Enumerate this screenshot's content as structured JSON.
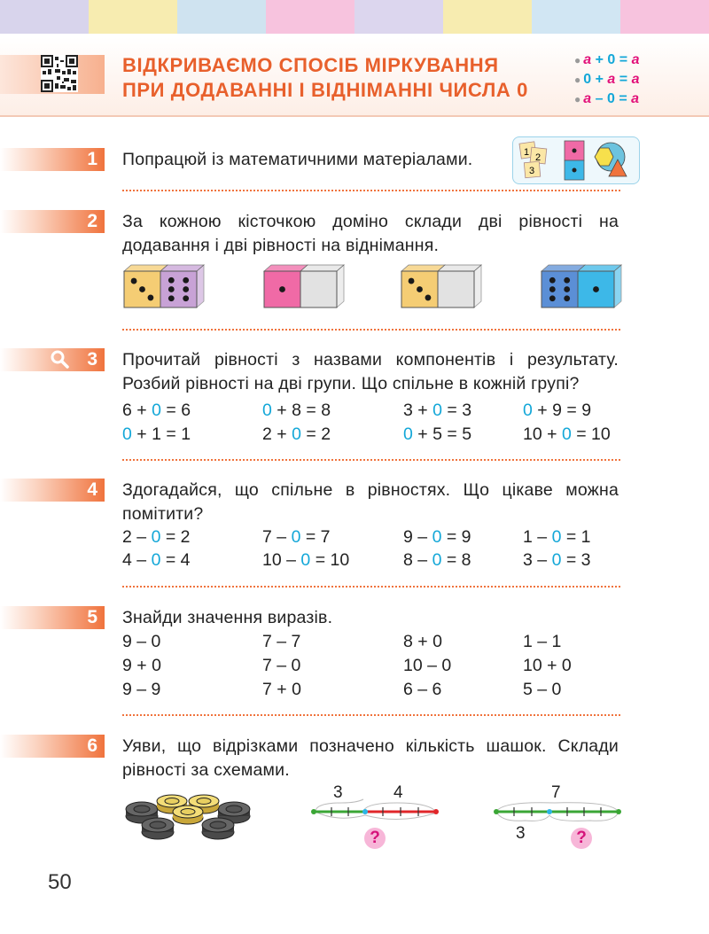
{
  "colors": {
    "accent": "#e8602c",
    "zero": "#13a7d8",
    "variable": "#e2127a",
    "stripes": [
      "#d8d4ec",
      "#f7ecb0",
      "#cfe3f0",
      "#f7c3de",
      "#dcd6ee",
      "#f7ecb0",
      "#d1e6f3",
      "#f7c3de"
    ]
  },
  "header": {
    "title_line1": "ВІДКРИВАЄМО СПОСІБ МІРКУВАННЯ",
    "title_line2": "ПРИ ДОДАВАННІ І ВІДНІМАННІ ЧИСЛА 0",
    "qr_icon": "qr-code-icon",
    "rules": [
      {
        "a": "a",
        "op": "+",
        "b": "0",
        "eq": "=",
        "r": "a"
      },
      {
        "a": "0",
        "op": "+",
        "b": "a",
        "eq": "=",
        "r": "a"
      },
      {
        "a": "a",
        "op": "–",
        "b": "0",
        "eq": "=",
        "r": "a"
      }
    ]
  },
  "tasks": {
    "t1": {
      "num": "1",
      "text": "Попрацюй із математичними матеріалами.",
      "materials": {
        "cards": [
          "1",
          "2",
          "3"
        ]
      }
    },
    "t2": {
      "num": "2",
      "text": "За кожною кісточкою доміно склади дві рівності на додавання і дві рівності на віднімання.",
      "dominoes": [
        {
          "left": 3,
          "right": 6,
          "left_color": "#f5cd74",
          "right_color": "#c8a2d6"
        },
        {
          "left": 1,
          "right": 0,
          "left_color": "#f06aa6",
          "right_color": "#e2e2e2"
        },
        {
          "left": 3,
          "right": 0,
          "left_color": "#f5cd74",
          "right_color": "#e2e2e2"
        },
        {
          "left": 6,
          "right": 1,
          "left_color": "#5b8fd6",
          "right_color": "#3db8e8"
        }
      ]
    },
    "t3": {
      "num": "3",
      "icon": "magnifier-icon",
      "text": "Прочитай рівності з назвами компонентів і результату. Розбий рівності на дві групи. Що спільне в кожній групі?",
      "rows": [
        [
          [
            "6",
            "+",
            "0",
            "=",
            "6"
          ],
          [
            "0",
            "+",
            "8",
            "=",
            "8"
          ],
          [
            "3",
            "+",
            "0",
            "=",
            "3"
          ],
          [
            "0",
            "+",
            "9",
            "=",
            "9"
          ]
        ],
        [
          [
            "0",
            "+",
            "1",
            "=",
            "1"
          ],
          [
            "2",
            "+",
            "0",
            "=",
            "2"
          ],
          [
            "0",
            "+",
            "5",
            "=",
            "5"
          ],
          [
            "10",
            "+",
            "0",
            "=",
            "10"
          ]
        ]
      ]
    },
    "t4": {
      "num": "4",
      "text": "Здогадайся, що спільне в рівностях. Що цікаве можна помітити?",
      "rows": [
        [
          [
            "2",
            "–",
            "0",
            "=",
            "2"
          ],
          [
            "7",
            "–",
            "0",
            "=",
            "7"
          ],
          [
            "9",
            "–",
            "0",
            "=",
            "9"
          ],
          [
            "1",
            "–",
            "0",
            "=",
            "1"
          ]
        ],
        [
          [
            "4",
            "–",
            "0",
            "=",
            "4"
          ],
          [
            "10",
            "–",
            "0",
            "=",
            "10"
          ],
          [
            "8",
            "–",
            "0",
            "=",
            "8"
          ],
          [
            "3",
            "–",
            "0",
            "=",
            "3"
          ]
        ]
      ]
    },
    "t5": {
      "num": "5",
      "text": "Знайди значення виразів.",
      "rows": [
        [
          "9 – 0",
          "7 – 7",
          "8 + 0",
          "1 – 1"
        ],
        [
          "9 + 0",
          "7 – 0",
          "10 – 0",
          "10 + 0"
        ],
        [
          "9 – 9",
          "7 + 0",
          "6 – 6",
          "5 – 0"
        ]
      ]
    },
    "t6": {
      "num": "6",
      "text": "Уяви, що відрізками позначено кількість шашок. Склади рівності за схемами.",
      "scheme1": {
        "top_left": "3",
        "top_right": "4",
        "question": "?"
      },
      "scheme2": {
        "top": "7",
        "bottom": "3",
        "question": "?"
      }
    }
  },
  "page_number": "50"
}
